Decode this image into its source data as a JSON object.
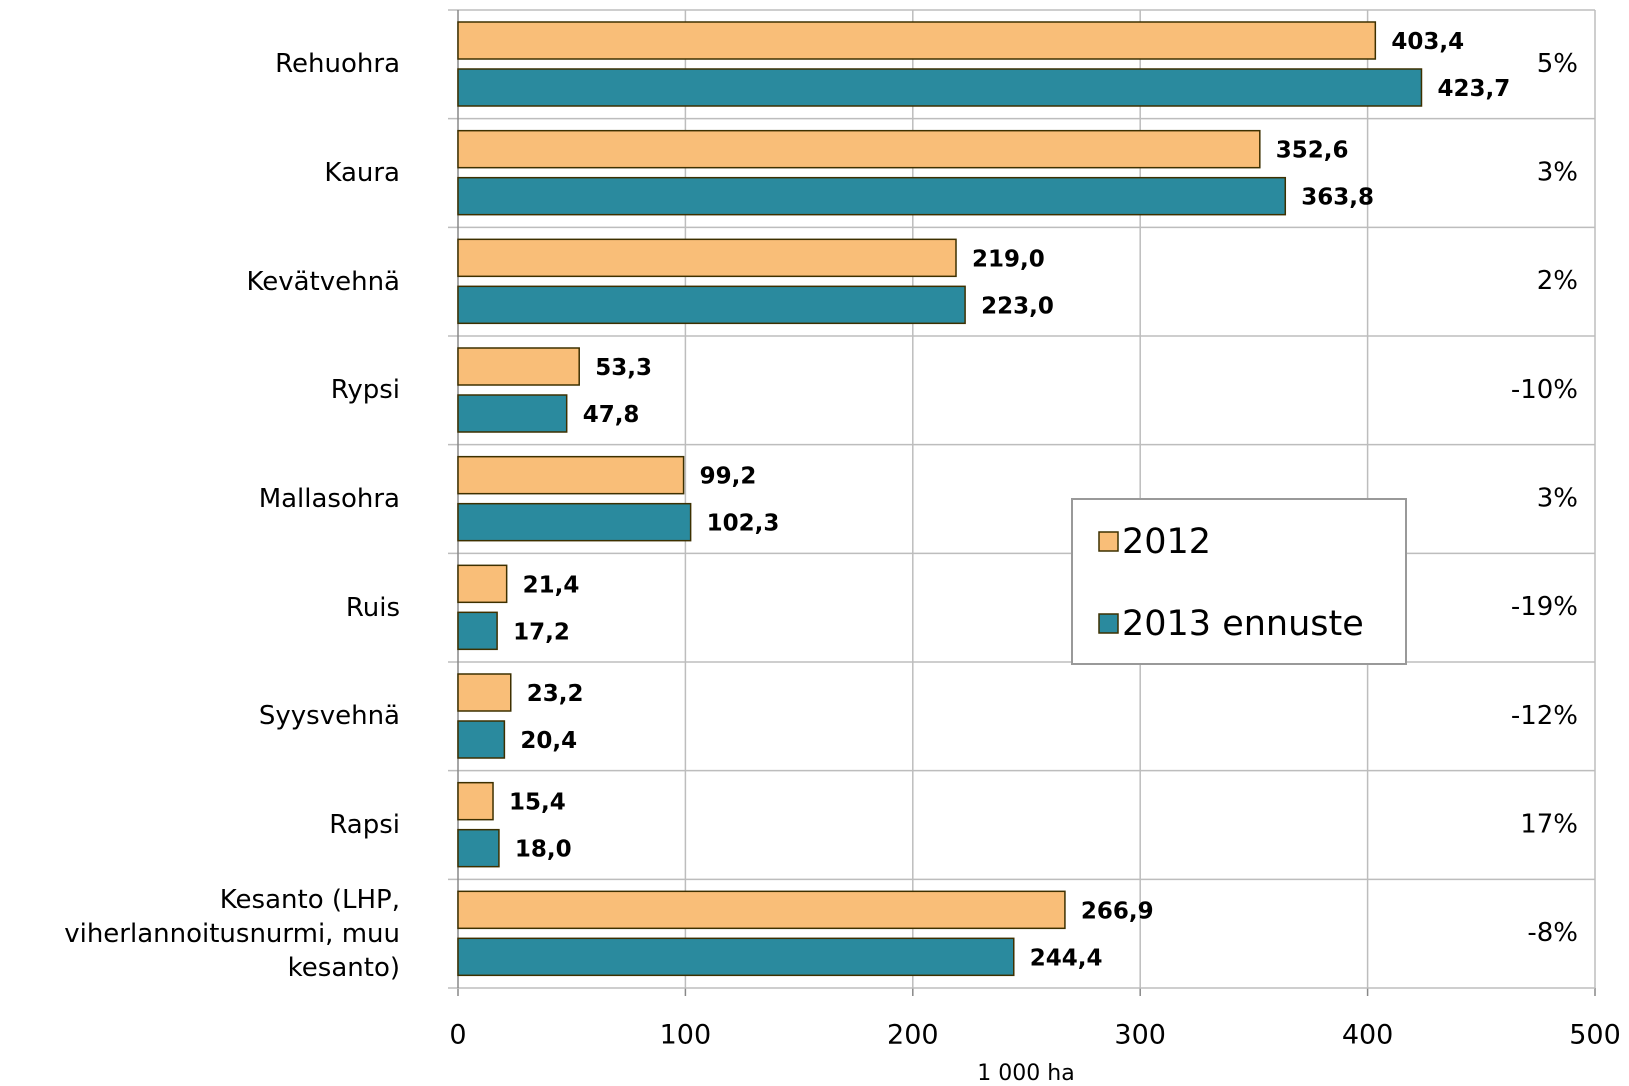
{
  "chart_data": {
    "type": "bar",
    "orientation": "horizontal",
    "categories": [
      "Rehuohra",
      "Kaura",
      "Kevätvehnä",
      "Rypsi",
      "Mallasohra",
      "Ruis",
      "Syysvehnä",
      "Rapsi",
      "Kesanto (LHP,\nviherlannoitusnurmi, muu\nkesanto)"
    ],
    "series": [
      {
        "name": "2012",
        "color": "#f9be78",
        "values": [
          403.4,
          352.6,
          219.0,
          53.3,
          99.2,
          21.4,
          23.2,
          15.4,
          266.9
        ],
        "value_labels": [
          "403,4",
          "352,6",
          "219,0",
          "53,3",
          "99,2",
          "21,4",
          "23,2",
          "15,4",
          "266,9"
        ]
      },
      {
        "name": "2013 ennuste",
        "color": "#2a8a9e",
        "values": [
          423.7,
          363.8,
          223.0,
          47.8,
          102.3,
          17.2,
          20.4,
          18.0,
          244.4
        ],
        "value_labels": [
          "423,7",
          "363,8",
          "223,0",
          "47,8",
          "102,3",
          "17,2",
          "20,4",
          "18,0",
          "244,4"
        ]
      }
    ],
    "annotations": [
      "5%",
      "3%",
      "2%",
      "-10%",
      "3%",
      "-19%",
      "-12%",
      "17%",
      "-8%"
    ],
    "xlabel": "1 000 ha",
    "xlim": [
      0,
      500
    ],
    "xticks": [
      0,
      100,
      200,
      300,
      400,
      500
    ],
    "grid": true
  }
}
